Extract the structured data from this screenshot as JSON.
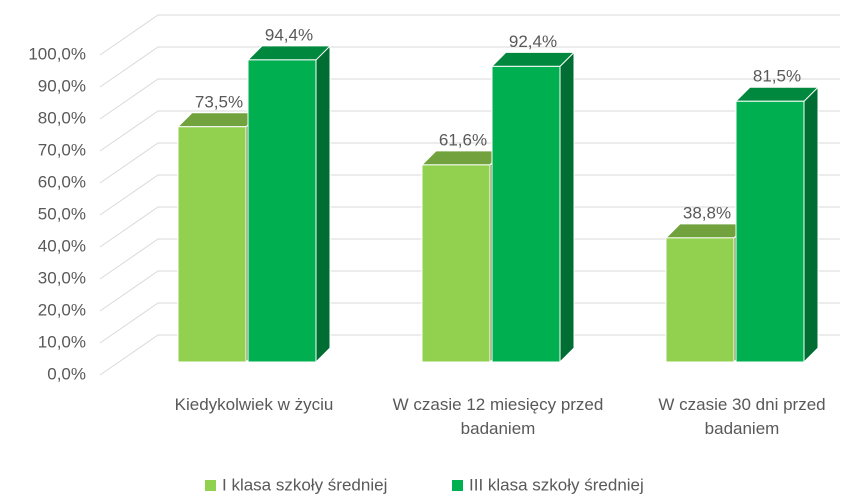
{
  "chart_data": {
    "type": "bar3d",
    "categories": [
      "Kiedykolwiek w życiu",
      "W czasie 12 miesięcy przed badaniem",
      "W czasie 30 dni przed badaniem"
    ],
    "series": [
      {
        "name": "I klasa szkoły średniej",
        "color": "#92d050",
        "values": [
          73.5,
          61.6,
          38.8
        ],
        "value_labels": [
          "73,5%",
          "61,6%",
          "38,8%"
        ]
      },
      {
        "name": "III klasa szkoły średniej",
        "color": "#00b050",
        "values": [
          94.4,
          92.4,
          81.5
        ],
        "value_labels": [
          "94,4%",
          "92,4%",
          "81,5%"
        ]
      }
    ],
    "ylim": [
      0,
      100
    ],
    "yticks": [
      {
        "value": 0,
        "label": "0,0%"
      },
      {
        "value": 10,
        "label": "10,0%"
      },
      {
        "value": 20,
        "label": "20,0%"
      },
      {
        "value": 30,
        "label": "30,0%"
      },
      {
        "value": 40,
        "label": "40,0%"
      },
      {
        "value": 50,
        "label": "50,0%"
      },
      {
        "value": 60,
        "label": "60,0%"
      },
      {
        "value": 70,
        "label": "70,0%"
      },
      {
        "value": 80,
        "label": "80,0%"
      },
      {
        "value": 90,
        "label": "90,0%"
      },
      {
        "value": 100,
        "label": "100,0%"
      }
    ],
    "grid": true,
    "legend": "bottom"
  }
}
